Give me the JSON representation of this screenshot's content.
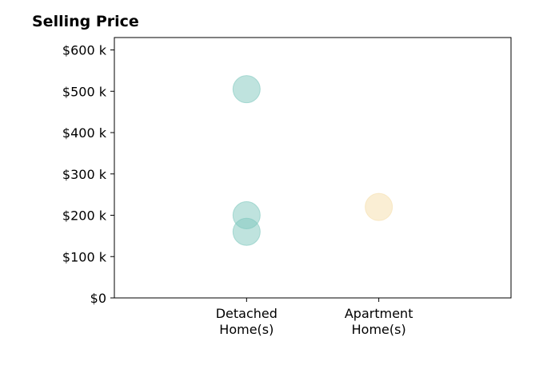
{
  "chart_data": {
    "type": "scatter",
    "title": "Selling Price",
    "categories": [
      "Detached\nHome(s)",
      "Apartment\nHome(s)"
    ],
    "ylim": [
      0,
      630000
    ],
    "xlim": [
      -1,
      2
    ],
    "y_ticks": [
      0,
      100000,
      200000,
      300000,
      400000,
      500000,
      600000
    ],
    "y_tick_labels": [
      "$0",
      "$100 k",
      "$200 k",
      "$300 k",
      "$400 k",
      "$500 k",
      "$600 k"
    ],
    "grid": false,
    "points": [
      {
        "category": "Detached\nHome(s)",
        "y": 505000,
        "color": "#7fc8be"
      },
      {
        "category": "Detached\nHome(s)",
        "y": 200000,
        "color": "#7fc8be"
      },
      {
        "category": "Detached\nHome(s)",
        "y": 160000,
        "color": "#7fc8be"
      },
      {
        "category": "Apartment\nHome(s)",
        "y": 220000,
        "color": "#f5deaa"
      }
    ],
    "point_opacity": 0.5
  }
}
